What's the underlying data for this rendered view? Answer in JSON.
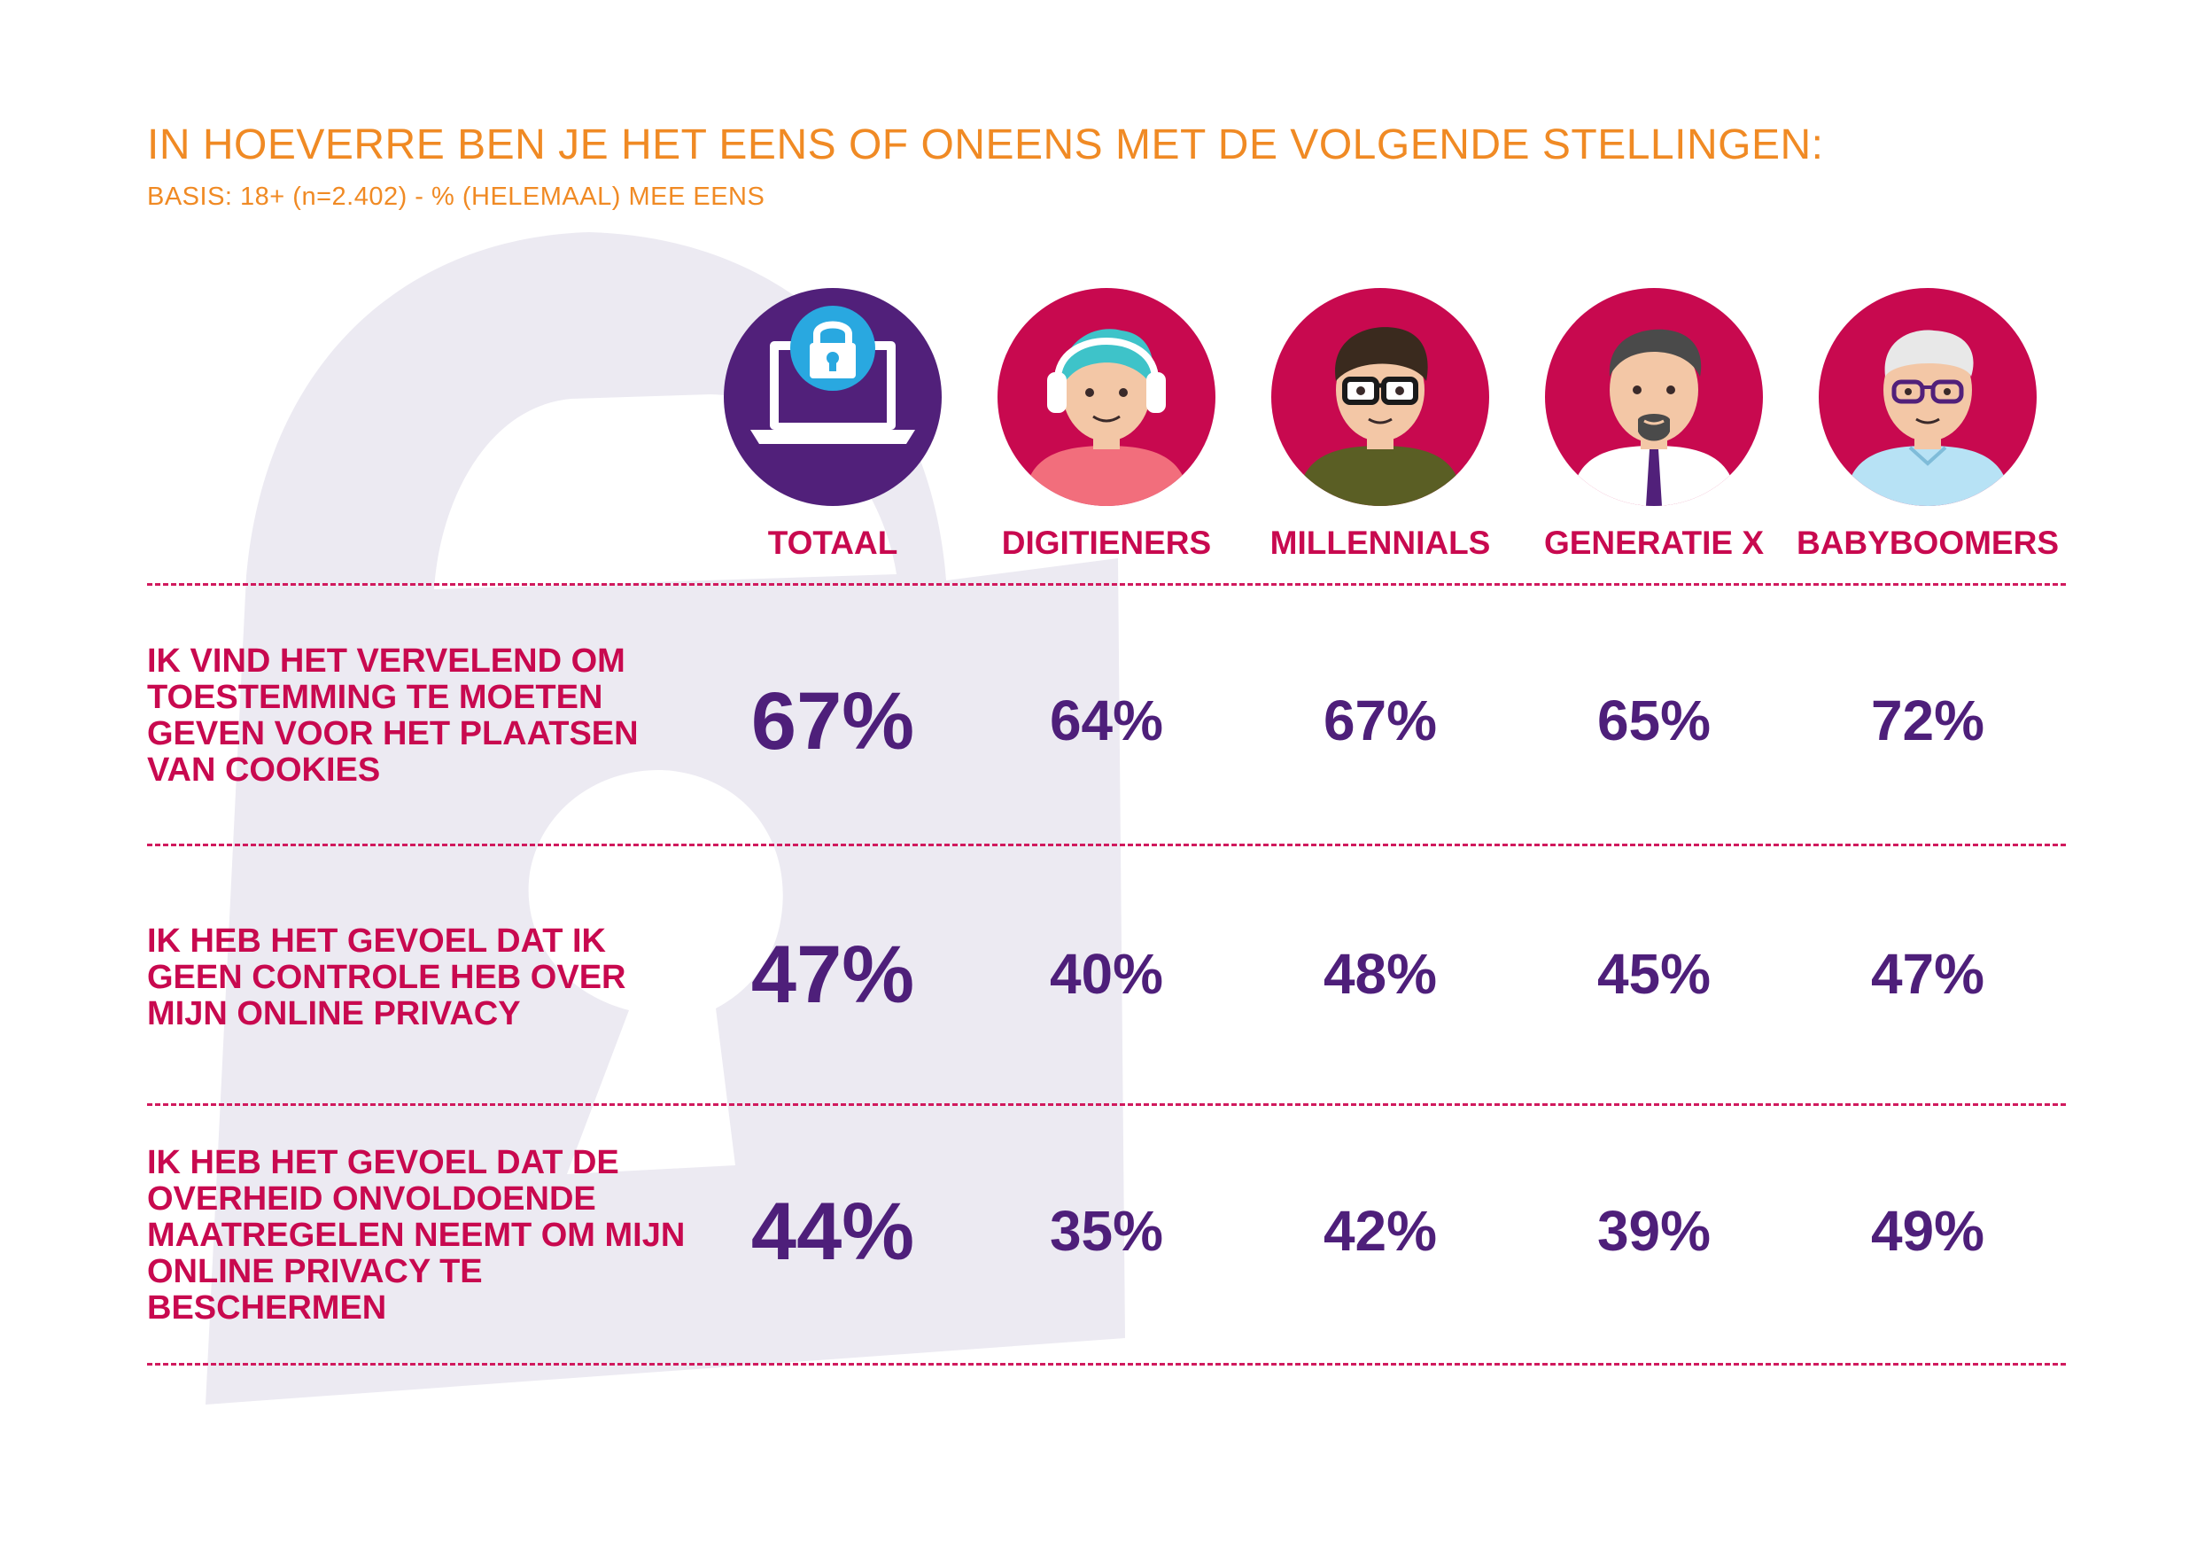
{
  "header": {
    "title": "IN HOEVERRE BEN JE HET EENS OF ONEENS MET DE VOLGENDE STELLINGEN:",
    "subtitle": "BASIS: 18+ (n=2.402) - % (HELEMAAL) MEE EENS"
  },
  "columns": [
    {
      "label": "TOTAAL",
      "icon": "laptop-lock-icon"
    },
    {
      "label": "DIGITIENERS",
      "icon": "teen-headphones-avatar"
    },
    {
      "label": "MILLENNIALS",
      "icon": "millennial-glasses-avatar"
    },
    {
      "label": "GENERATIE X",
      "icon": "genx-tie-avatar"
    },
    {
      "label": "BABYBOOMERS",
      "icon": "babyboomer-avatar"
    }
  ],
  "rows": [
    {
      "statement": "IK VIND HET VERVELEND OM TOESTEMMING TE MOETEN GEVEN VOOR HET PLAATSEN VAN COOKIES",
      "values": [
        "67%",
        "64%",
        "67%",
        "65%",
        "72%"
      ]
    },
    {
      "statement": "IK HEB HET GEVOEL DAT IK GEEN CONTROLE HEB OVER MIJN ONLINE PRIVACY",
      "values": [
        "47%",
        "40%",
        "48%",
        "45%",
        "47%"
      ]
    },
    {
      "statement": "IK HEB HET GEVOEL DAT DE OVERHEID ONVOLDOENDE MAATREGELEN NEEMT OM MIJN ONLINE PRIVACY TE BESCHERMEN",
      "values": [
        "44%",
        "35%",
        "42%",
        "39%",
        "49%"
      ]
    }
  ],
  "colors": {
    "title": "#F08A24",
    "accent": "#C8094F",
    "value": "#4E1F7A",
    "circle_total": "#51207A",
    "circle_group": "#C8094F",
    "background_lock": "#ECEAF2"
  },
  "chart_data": {
    "type": "table",
    "title": "IN HOEVERRE BEN JE HET EENS OF ONEENS MET DE VOLGENDE STELLINGEN:",
    "subtitle": "BASIS: 18+ (n=2.402) - % (HELEMAAL) MEE EENS",
    "categories": [
      "TOTAAL",
      "DIGITIENERS",
      "MILLENNIALS",
      "GENERATIE X",
      "BABYBOOMERS"
    ],
    "series": [
      {
        "name": "IK VIND HET VERVELEND OM TOESTEMMING TE MOETEN GEVEN VOOR HET PLAATSEN VAN COOKIES",
        "values": [
          67,
          64,
          67,
          65,
          72
        ]
      },
      {
        "name": "IK HEB HET GEVOEL DAT IK GEEN CONTROLE HEB OVER MIJN ONLINE PRIVACY",
        "values": [
          47,
          40,
          48,
          45,
          47
        ]
      },
      {
        "name": "IK HEB HET GEVOEL DAT DE OVERHEID ONVOLDOENDE MAATREGELEN NEEMT OM MIJN ONLINE PRIVACY TE BESCHERMEN",
        "values": [
          44,
          35,
          42,
          39,
          49
        ]
      }
    ],
    "unit": "%"
  }
}
